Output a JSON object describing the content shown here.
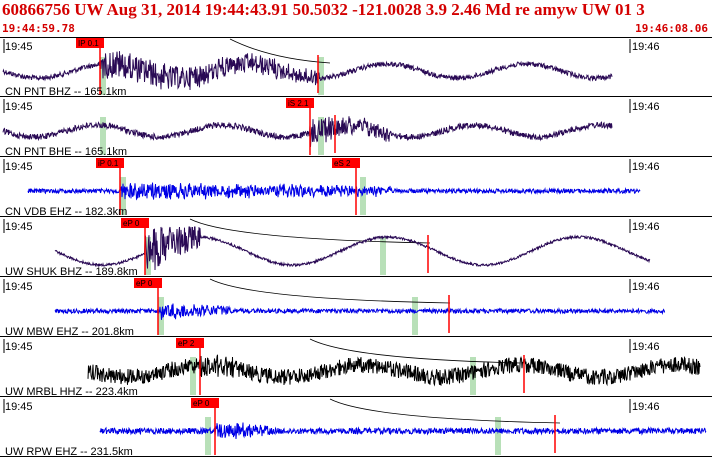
{
  "header": {
    "title": "60866756 UW Aug 31, 2014 19:44:43.91    50.5032 -121.0028  3.9 2.46 Md re amyw UW 01    3",
    "start_time": "19:44:59.78",
    "end_time": "19:46:08.06"
  },
  "colors": {
    "header_red": "#d40000",
    "trace_dark": "#2a0a55",
    "trace_blue": "#0000e6",
    "trace_black": "#000000",
    "pick_red": "#ff0000",
    "window_green": "#b8e0b8"
  },
  "axis": {
    "left_tick": "19:45",
    "right_tick": "19:46"
  },
  "traces": [
    {
      "label": "CN PNT BHZ -- 165.1km",
      "color": "dark",
      "picks": [
        {
          "text": "IP 0.1"
        }
      ]
    },
    {
      "label": "CN PNT BHE -- 165.1km",
      "color": "dark",
      "picks": [
        {
          "text": "iS 2.1"
        }
      ]
    },
    {
      "label": "CN VDB EHZ -- 182.3km",
      "color": "blue",
      "picks": [
        {
          "text": "iP 0.1"
        },
        {
          "text": "eS 2"
        }
      ]
    },
    {
      "label": "UW SHUK BHZ -- 189.8km",
      "color": "dark",
      "picks": [
        {
          "text": "eP 0"
        }
      ]
    },
    {
      "label": "UW MBW EHZ -- 201.8km",
      "color": "blue",
      "picks": [
        {
          "text": "eP 0"
        }
      ]
    },
    {
      "label": "UW MRBL HHZ -- 223.4km",
      "color": "black",
      "picks": [
        {
          "text": "eP 2"
        }
      ]
    },
    {
      "label": "UW RPW EHZ -- 231.5km",
      "color": "blue",
      "picks": [
        {
          "text": "eP 0"
        }
      ]
    }
  ]
}
